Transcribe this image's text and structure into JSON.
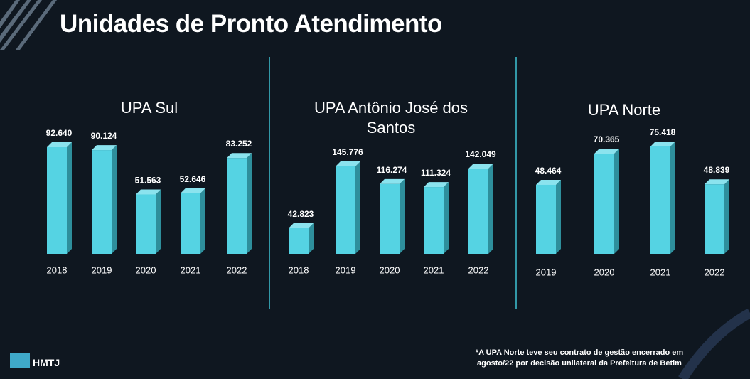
{
  "title": "Unidades de Pronto Atendimento",
  "footnote": [
    "*A UPA Norte teve seu contrato de gestão encerrado em",
    "agosto/22  por decisão unilateral da Prefeitura de Betim"
  ],
  "logo": "HMTJ",
  "chart_data": [
    {
      "type": "bar",
      "title": "UPA Sul",
      "color": "#55d3e3",
      "categories": [
        "2018",
        "2019",
        "2020",
        "2021",
        "2022"
      ],
      "values": [
        92640,
        90124,
        51563,
        52646,
        83252
      ],
      "value_labels": [
        "92.640",
        "90.124",
        "51.563",
        "52.646",
        "83.252"
      ]
    },
    {
      "type": "bar",
      "title": "UPA Antônio José dos Santos",
      "color": "#55d3e3",
      "categories": [
        "2018",
        "2019",
        "2020",
        "2021",
        "2022"
      ],
      "values": [
        42823,
        145776,
        116274,
        111324,
        142049
      ],
      "value_labels": [
        "42.823",
        "145.776",
        "116.274",
        "111.324",
        "142.049"
      ]
    },
    {
      "type": "bar",
      "title": "UPA Norte",
      "color": "#55d3e3",
      "categories": [
        "2019",
        "2020",
        "2021",
        "2022"
      ],
      "values": [
        48464,
        70365,
        75418,
        48839
      ],
      "value_labels": [
        "48.464",
        "70.365",
        "75.418",
        "48.839"
      ]
    }
  ]
}
